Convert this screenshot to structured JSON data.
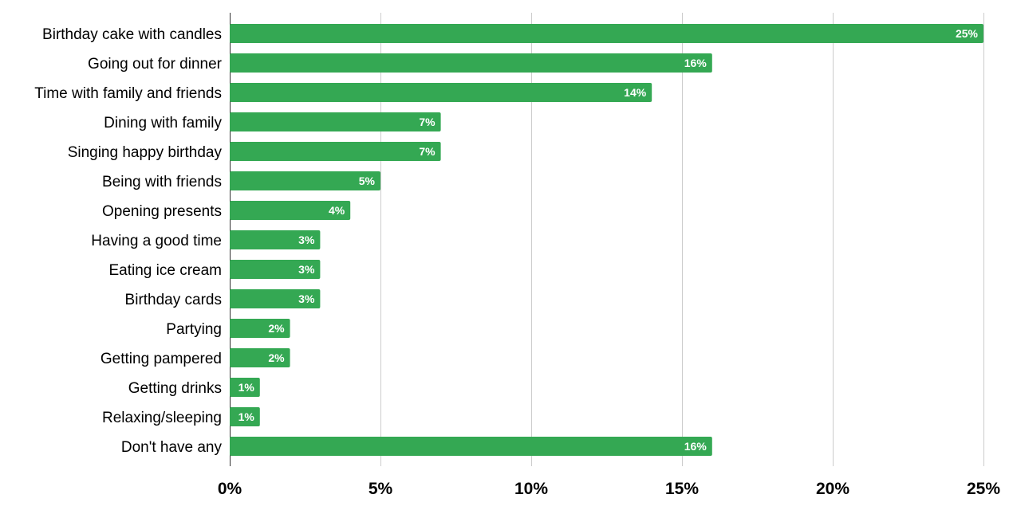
{
  "chart_data": {
    "type": "bar",
    "orientation": "horizontal",
    "title": "",
    "xlabel": "",
    "ylabel": "",
    "categories": [
      "Birthday cake with candles",
      "Going out for dinner",
      "Time with family and friends",
      "Dining with family",
      "Singing happy birthday",
      "Being with friends",
      "Opening presents",
      "Having a good time",
      "Eating ice cream",
      "Birthday cards",
      "Partying",
      "Getting pampered",
      "Getting drinks",
      "Relaxing/sleeping",
      "Don't have any"
    ],
    "values": [
      25,
      16,
      14,
      7,
      7,
      5,
      4,
      3,
      3,
      3,
      2,
      2,
      1,
      1,
      16
    ],
    "data_labels": [
      "25%",
      "16%",
      "14%",
      "7%",
      "7%",
      "5%",
      "4%",
      "3%",
      "3%",
      "3%",
      "2%",
      "2%",
      "1%",
      "1%",
      "16%"
    ],
    "xlim": [
      0,
      25
    ],
    "x_ticks": [
      0,
      5,
      10,
      15,
      20,
      25
    ],
    "x_tick_labels": [
      "0%",
      "5%",
      "10%",
      "15%",
      "20%",
      "25%"
    ],
    "grid": true,
    "legend": "none",
    "bar_color": "#34a853"
  }
}
